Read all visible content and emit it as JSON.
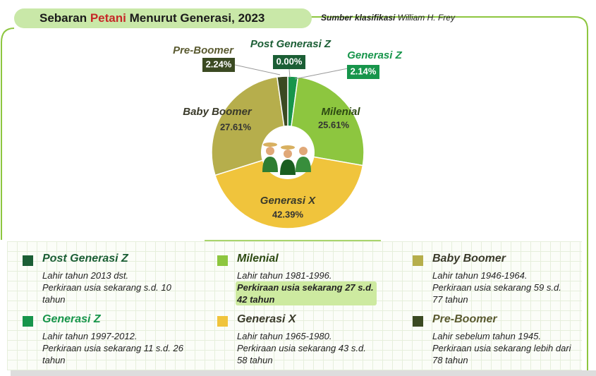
{
  "chart_data": {
    "type": "pie",
    "title": [
      "Sebaran",
      "Petani",
      "Menurut Generasi, 2023"
    ],
    "source_label": "Sumber klasifikasi",
    "source": "William H. Frey",
    "categories": [
      "Post Generasi Z",
      "Generasi Z",
      "Milenial",
      "Generasi X",
      "Baby Boomer",
      "Pre-Boomer"
    ],
    "values": [
      0.0,
      2.14,
      25.61,
      42.39,
      27.61,
      2.24
    ],
    "value_labels": [
      "0.00%",
      "2.14%",
      "25.61%",
      "42.39%",
      "27.61%",
      "2.24%"
    ],
    "colors": [
      "#1b5e35",
      "#17954b",
      "#8dc63f",
      "#f0c43c",
      "#b6ae4c",
      "#3b4a22"
    ],
    "descriptions": [
      [
        "Lahir tahun 2013 dst.",
        "Perkiraan usia sekarang s.d. 10 tahun"
      ],
      [
        "Lahir tahun 1997-2012.",
        "Perkiraan usia sekarang 11 s.d. 26 tahun"
      ],
      [
        "Lahir tahun 1981-1996.",
        "Perkiraan usia sekarang 27 s.d. 42 tahun"
      ],
      [
        "Lahir tahun 1965-1980.",
        "Perkiraan usia sekarang 43 s.d. 58 tahun"
      ],
      [
        "Lahir tahun 1946-1964.",
        "Perkiraan usia sekarang 59 s.d. 77 tahun"
      ],
      [
        "Lahir sebelum tahun 1945.",
        "Perkiraan usia sekarang lebih dari 78 tahun"
      ]
    ]
  }
}
